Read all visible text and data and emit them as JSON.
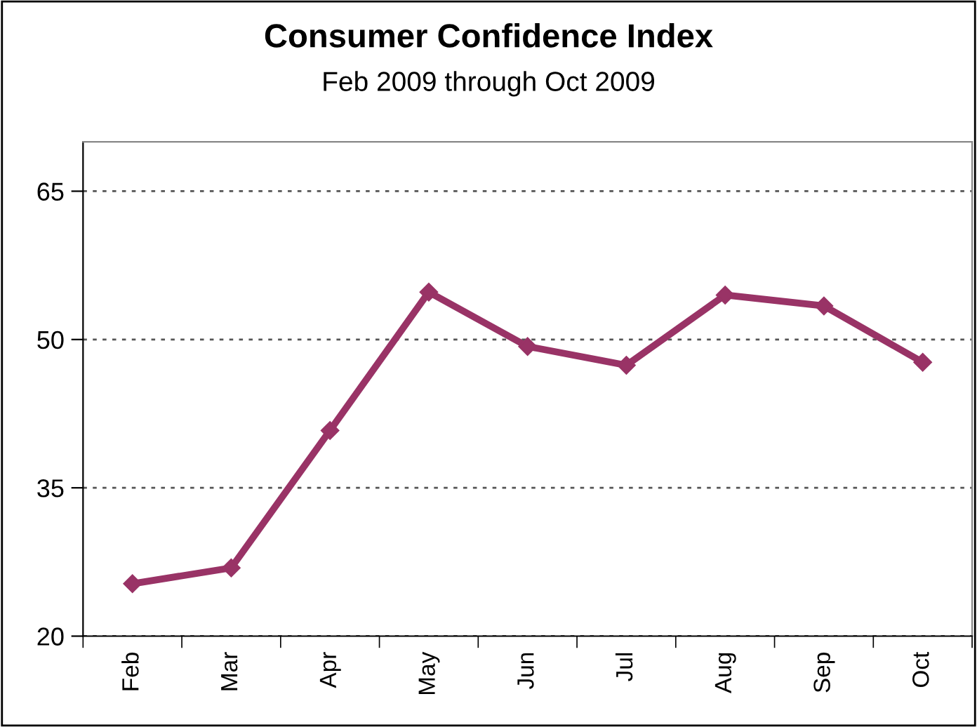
{
  "chart_data": {
    "type": "line",
    "title": "Consumer Confidence Index",
    "subtitle": "Feb 2009 through Oct 2009",
    "categories": [
      "Feb",
      "Mar",
      "Apr",
      "May",
      "Jun",
      "Jul",
      "Aug",
      "Sep",
      "Oct"
    ],
    "series": [
      {
        "color": "#993366",
        "values": [
          25.3,
          26.9,
          40.8,
          54.8,
          49.3,
          47.4,
          54.5,
          53.4,
          47.7
        ]
      }
    ],
    "ylim": [
      20,
      70
    ],
    "yticks": [
      20,
      35,
      50,
      65
    ],
    "grid": "y",
    "marker": "diamond",
    "line_style": "solid",
    "legend": false
  }
}
